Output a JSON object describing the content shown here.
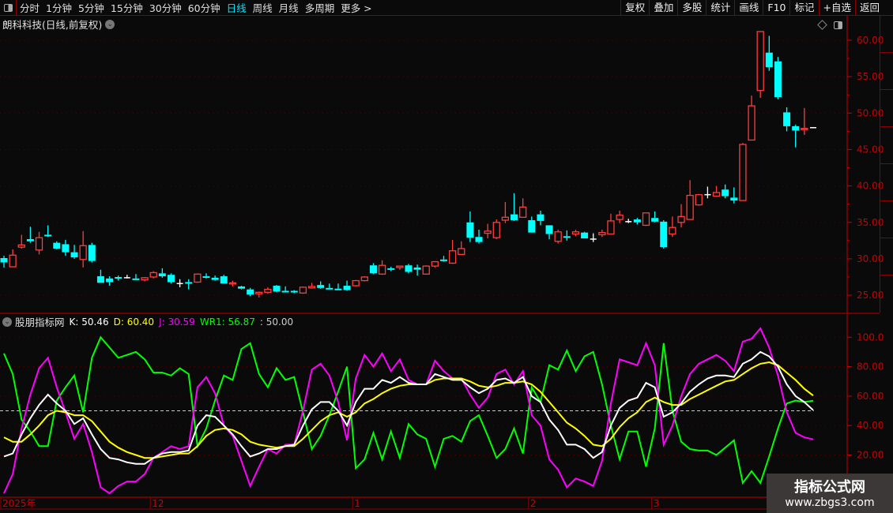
{
  "toolbar": {
    "periods": [
      "分时",
      "1分钟",
      "5分钟",
      "15分钟",
      "30分钟",
      "60分钟",
      "日线",
      "周线",
      "月线",
      "多周期",
      "更多 >"
    ],
    "active_period": "日线",
    "buttons": [
      "复权",
      "叠加",
      "多股",
      "统计",
      "画线",
      "F10",
      "标记",
      "+自选",
      "返回"
    ]
  },
  "stock_title": "朗科科技(日线,前复权)",
  "indicator_legend": {
    "name": "股朋指标网",
    "k": "K: 50.46",
    "d": "D: 60.40",
    "j": "J: 30.59",
    "wr1": "WR1: 56.87",
    "ref": ": 50.00"
  },
  "colors": {
    "up": "#ff3c3c",
    "down": "#00ffff",
    "k": "#ffffff",
    "d": "#ffff00",
    "j": "#ff00ff",
    "wr1": "#00ff00",
    "axis": "#cc0000",
    "grid": "#5a0000"
  },
  "date_axis": [
    "2025年",
    "12",
    "1",
    "2",
    "3"
  ],
  "watermark": {
    "line1": "指标公式网",
    "line2": "www.zbgs3.com"
  },
  "chart_data": [
    {
      "type": "candlestick",
      "y_ticks": [
        "60.00",
        "55.00",
        "50.00",
        "45.00",
        "40.00",
        "35.00",
        "30.00",
        "25.00"
      ],
      "ylim": [
        25,
        60
      ],
      "grid": true,
      "ohlc": [
        [
          30.1,
          30.4,
          28.8,
          29.5
        ],
        [
          28.9,
          31.3,
          28.9,
          30.5
        ],
        [
          31.6,
          33.3,
          31.4,
          31.9
        ],
        [
          32.7,
          34.4,
          32.2,
          32.4
        ],
        [
          31.2,
          33.7,
          30.6,
          32.9
        ],
        [
          33.3,
          34.6,
          33.0,
          33.2
        ],
        [
          32.2,
          32.4,
          31.3,
          31.4
        ],
        [
          32.0,
          32.6,
          30.4,
          30.9
        ],
        [
          30.9,
          31.9,
          30.0,
          30.2
        ],
        [
          29.9,
          33.8,
          28.8,
          31.8
        ],
        [
          31.9,
          32.2,
          29.5,
          29.7
        ],
        [
          27.6,
          28.5,
          26.7,
          26.7
        ],
        [
          27.3,
          27.6,
          26.3,
          26.8
        ],
        [
          27.5,
          27.7,
          27.0,
          27.4
        ],
        [
          27.4,
          27.8,
          27.3,
          27.4
        ],
        [
          27.3,
          27.9,
          27.2,
          27.1
        ],
        [
          27.1,
          27.5,
          26.9,
          27.4
        ],
        [
          27.5,
          28.3,
          27.3,
          28.1
        ],
        [
          28.0,
          28.7,
          27.4,
          27.6
        ],
        [
          27.8,
          28.0,
          26.6,
          26.8
        ],
        [
          26.6,
          27.2,
          26.1,
          26.6
        ],
        [
          26.8,
          27.2,
          25.8,
          26.6
        ],
        [
          26.8,
          28.0,
          26.7,
          27.9
        ],
        [
          27.6,
          28.0,
          27.3,
          27.5
        ],
        [
          27.4,
          27.7,
          27.0,
          27.1
        ],
        [
          27.6,
          27.8,
          26.6,
          26.6
        ],
        [
          26.6,
          27.0,
          26.2,
          26.7
        ],
        [
          26.2,
          26.3,
          25.8,
          25.9
        ],
        [
          25.8,
          26.0,
          24.9,
          25.1
        ],
        [
          25.2,
          25.5,
          24.7,
          25.4
        ],
        [
          25.4,
          26.1,
          25.2,
          25.8
        ],
        [
          26.3,
          26.4,
          25.4,
          25.5
        ],
        [
          25.6,
          26.2,
          25.4,
          25.5
        ],
        [
          25.6,
          25.7,
          25.3,
          25.5
        ],
        [
          25.3,
          26.2,
          25.2,
          26.1
        ],
        [
          26.0,
          26.7,
          25.9,
          26.2
        ],
        [
          26.4,
          26.9,
          25.9,
          26.0
        ],
        [
          26.0,
          26.6,
          25.9,
          25.9
        ],
        [
          25.9,
          26.6,
          25.8,
          25.8
        ],
        [
          26.3,
          27.0,
          25.6,
          25.7
        ],
        [
          26.3,
          27.1,
          26.2,
          27.0
        ],
        [
          27.0,
          27.6,
          26.9,
          27.5
        ],
        [
          29.1,
          29.4,
          27.9,
          28.0
        ],
        [
          27.9,
          29.8,
          27.8,
          29.1
        ],
        [
          28.7,
          28.9,
          28.3,
          28.5
        ],
        [
          28.8,
          29.0,
          28.5,
          29.0
        ],
        [
          29.1,
          29.3,
          28.0,
          28.2
        ],
        [
          28.8,
          29.2,
          27.7,
          28.5
        ],
        [
          27.9,
          29.1,
          27.8,
          29.0
        ],
        [
          29.0,
          29.7,
          28.8,
          29.6
        ],
        [
          29.9,
          30.4,
          29.6,
          29.7
        ],
        [
          29.4,
          32.6,
          29.3,
          31.1
        ],
        [
          30.6,
          32.4,
          30.6,
          31.4
        ],
        [
          35.0,
          36.5,
          32.3,
          32.9
        ],
        [
          33.0,
          34.0,
          32.1,
          32.3
        ],
        [
          33.5,
          34.8,
          32.8,
          33.8
        ],
        [
          32.9,
          35.4,
          32.7,
          35.0
        ],
        [
          35.3,
          37.8,
          34.9,
          35.7
        ],
        [
          36.1,
          39.0,
          35.2,
          35.3
        ],
        [
          35.7,
          38.3,
          35.7,
          37.1
        ],
        [
          35.3,
          35.8,
          33.6,
          33.6
        ],
        [
          36.1,
          36.6,
          34.6,
          35.2
        ],
        [
          34.6,
          34.6,
          32.7,
          33.4
        ],
        [
          32.4,
          34.0,
          32.1,
          33.7
        ],
        [
          33.1,
          33.9,
          32.5,
          32.9
        ],
        [
          33.4,
          34.0,
          33.1,
          33.7
        ],
        [
          33.6,
          33.7,
          32.8,
          32.8
        ],
        [
          32.7,
          33.5,
          32.3,
          32.7
        ],
        [
          33.3,
          34.0,
          33.0,
          33.6
        ],
        [
          33.4,
          36.2,
          33.4,
          35.2
        ],
        [
          35.4,
          36.6,
          34.9,
          36.0
        ],
        [
          35.1,
          35.5,
          34.9,
          35.1
        ],
        [
          35.4,
          35.6,
          34.7,
          35.0
        ],
        [
          34.6,
          36.3,
          34.5,
          36.3
        ],
        [
          35.6,
          36.5,
          35.0,
          35.1
        ],
        [
          35.1,
          35.3,
          31.4,
          31.6
        ],
        [
          33.4,
          35.8,
          33.0,
          34.3
        ],
        [
          35.0,
          37.5,
          34.3,
          35.8
        ],
        [
          35.4,
          40.8,
          35.4,
          38.7
        ],
        [
          37.4,
          38.9,
          37.3,
          38.8
        ],
        [
          38.8,
          39.9,
          38.3,
          38.8
        ],
        [
          38.6,
          40.0,
          38.6,
          39.1
        ],
        [
          39.5,
          40.2,
          38.3,
          38.6
        ],
        [
          38.4,
          39.8,
          37.6,
          38.0
        ],
        [
          38.0,
          45.9,
          38.0,
          45.7
        ],
        [
          46.3,
          52.4,
          46.3,
          51.0
        ],
        [
          53.1,
          61.2,
          52.1,
          61.2
        ],
        [
          58.3,
          60.6,
          55.8,
          56.3
        ],
        [
          57.1,
          57.7,
          51.9,
          52.2
        ],
        [
          50.1,
          50.8,
          47.5,
          48.2
        ],
        [
          48.2,
          48.4,
          45.3,
          47.6
        ],
        [
          47.8,
          50.7,
          47.0,
          47.9
        ],
        [
          48.0,
          48.0,
          48.0,
          48.0
        ]
      ],
      "month_starts": {
        "2025年": 0,
        "12": 17,
        "1": 40,
        "2": 60,
        "3": 74
      }
    },
    {
      "type": "line",
      "y_ticks": [
        "100.0",
        "80.00",
        "60.00",
        "40.00",
        "20.00"
      ],
      "ylim": [
        0,
        100
      ],
      "reference_line": 50,
      "grid": true,
      "series": [
        {
          "name": "K",
          "values": [
            19,
            21,
            34,
            45,
            54,
            61,
            55,
            50,
            41,
            45,
            34,
            24,
            18,
            17,
            15,
            14,
            14,
            18,
            21,
            22,
            22,
            23,
            40,
            47,
            46,
            40,
            34,
            26,
            19,
            21,
            24,
            24,
            26,
            27,
            40,
            51,
            56,
            56,
            50,
            40,
            56,
            65,
            65,
            71,
            69,
            73,
            69,
            68,
            68,
            75,
            73,
            71,
            71,
            66,
            62,
            65,
            71,
            72,
            69,
            73,
            60,
            56,
            44,
            37,
            27,
            27,
            24,
            18,
            22,
            40,
            52,
            57,
            59,
            69,
            66,
            46,
            49,
            55,
            63,
            68,
            72,
            74,
            74,
            73,
            82,
            85,
            90,
            87,
            80,
            68,
            60,
            56,
            50.46
          ]
        },
        {
          "name": "D",
          "values": [
            32,
            29,
            29,
            34,
            40,
            47,
            50,
            49,
            47,
            47,
            43,
            36,
            29,
            25,
            22,
            20,
            18,
            18,
            19,
            20,
            21,
            21,
            26,
            33,
            37,
            38,
            37,
            34,
            29,
            27,
            26,
            25,
            26,
            26,
            31,
            37,
            43,
            47,
            49,
            46,
            49,
            55,
            58,
            62,
            65,
            67,
            68,
            68,
            68,
            71,
            72,
            72,
            72,
            70,
            67,
            66,
            67,
            69,
            69,
            70,
            68,
            63,
            56,
            49,
            42,
            38,
            33,
            27,
            26,
            31,
            39,
            45,
            49,
            56,
            59,
            56,
            54,
            54,
            58,
            61,
            64,
            67,
            70,
            71,
            75,
            79,
            82,
            83,
            81,
            76,
            71,
            65,
            60.4
          ]
        },
        {
          "name": "J",
          "values": [
            -6,
            7,
            38,
            61,
            79,
            86,
            66,
            49,
            31,
            41,
            22,
            -2,
            -6,
            -1,
            2,
            2,
            7,
            18,
            22,
            26,
            24,
            26,
            66,
            73,
            62,
            40,
            33,
            16,
            -1,
            12,
            24,
            21,
            27,
            27,
            50,
            78,
            82,
            74,
            56,
            30,
            72,
            88,
            80,
            89,
            77,
            85,
            71,
            68,
            68,
            84,
            77,
            72,
            72,
            61,
            52,
            59,
            75,
            78,
            68,
            77,
            47,
            40,
            17,
            10,
            -2,
            4,
            2,
            -1,
            16,
            55,
            85,
            83,
            81,
            96,
            81,
            27,
            40,
            60,
            75,
            82,
            85,
            88,
            84,
            77,
            97,
            99,
            106,
            93,
            74,
            49,
            35,
            32,
            30.59
          ]
        },
        {
          "name": "WR1",
          "values": [
            89,
            75,
            44,
            36,
            26,
            26,
            57,
            66,
            74,
            49,
            86,
            100,
            93,
            86,
            88,
            90,
            85,
            76,
            76,
            74,
            79,
            75,
            26,
            38,
            57,
            74,
            71,
            92,
            96,
            75,
            66,
            79,
            71,
            73,
            49,
            24,
            33,
            47,
            63,
            80,
            11,
            17,
            35,
            17,
            36,
            18,
            41,
            34,
            31,
            12,
            31,
            33,
            29,
            43,
            47,
            33,
            18,
            24,
            38,
            21,
            66,
            56,
            81,
            78,
            91,
            77,
            87,
            90,
            68,
            40,
            17,
            36,
            36,
            12,
            38,
            96,
            50,
            29,
            24,
            23,
            23,
            20,
            25,
            30,
            1,
            9,
            1,
            19,
            38,
            55,
            57,
            56,
            56.87
          ]
        }
      ]
    }
  ]
}
